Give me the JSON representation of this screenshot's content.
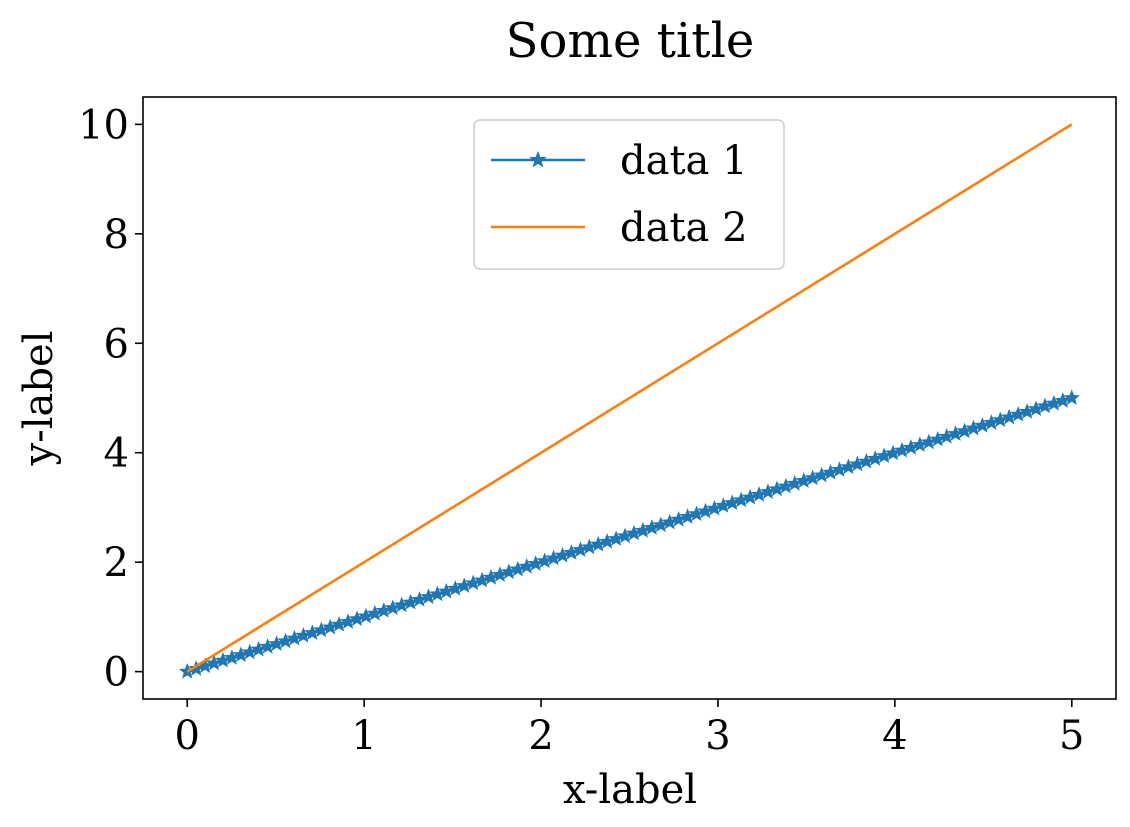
{
  "chart_data": {
    "type": "line",
    "title": "Some title",
    "xlabel": "x-label",
    "ylabel": "y-label",
    "xlim": [
      -0.25,
      5.25
    ],
    "ylim": [
      -0.5,
      10.5
    ],
    "xticks": [
      0,
      1,
      2,
      3,
      4,
      5
    ],
    "yticks": [
      0,
      2,
      4,
      6,
      8,
      10
    ],
    "grid": false,
    "legend_position": "upper center",
    "series": [
      {
        "name": "data 1",
        "color": "#1f77b4",
        "marker": "star",
        "x_range": [
          0,
          5
        ],
        "n_points": 100,
        "slope": 1
      },
      {
        "name": "data 2",
        "color": "#ff7f0e",
        "marker": "none",
        "x": [
          0,
          5
        ],
        "y": [
          0,
          10
        ]
      }
    ]
  }
}
